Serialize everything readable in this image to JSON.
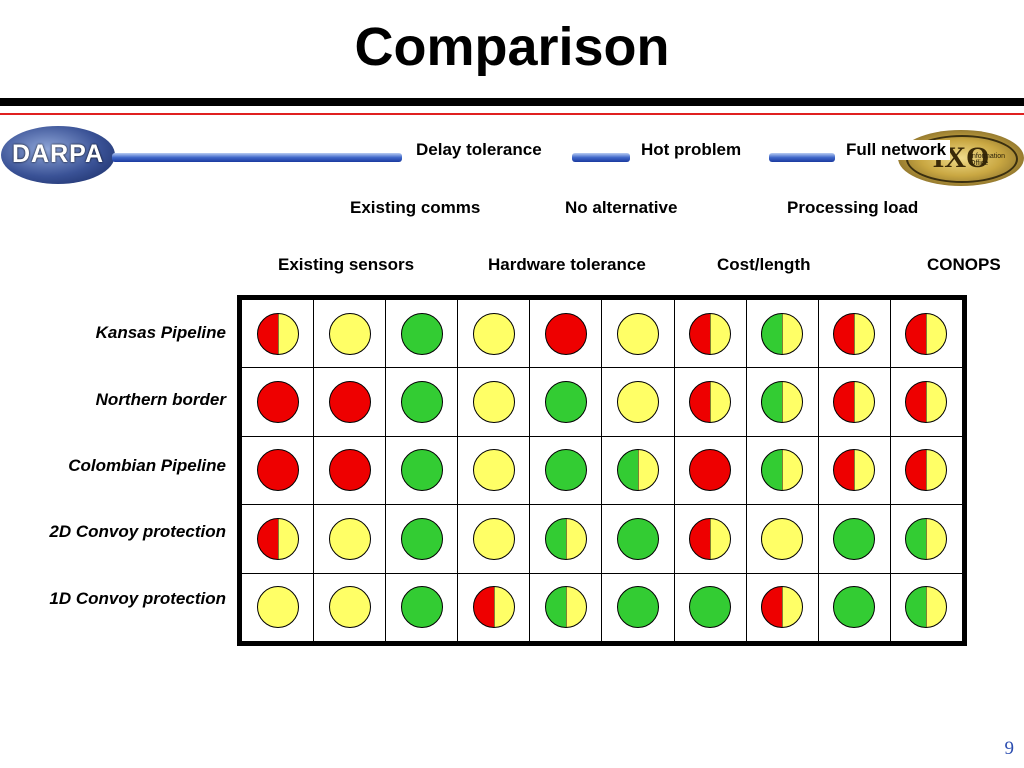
{
  "title": "Comparison",
  "logos": {
    "left_text": "DARPA",
    "right_mark": "IXO",
    "right_small_text": "Information Office"
  },
  "columns": [
    "Existing sensors",
    "Existing comms",
    "Delay tolerance",
    "Hardware tolerance",
    "No alternative",
    "Hot problem",
    "Cost/length",
    "Processing load",
    "Full network",
    "CONOPS"
  ],
  "rows": [
    {
      "label": "Kansas Pipeline",
      "cells": [
        "red|yellow",
        "yellow",
        "green",
        "yellow",
        "red",
        "yellow",
        "red|yellow",
        "green|yellow",
        "red|yellow",
        "red|yellow"
      ]
    },
    {
      "label": "Northern border",
      "cells": [
        "red",
        "red",
        "green",
        "yellow",
        "green",
        "yellow",
        "red|yellow",
        "green|yellow",
        "red|yellow",
        "red|yellow"
      ]
    },
    {
      "label": "Colombian Pipeline",
      "cells": [
        "red",
        "red",
        "green",
        "yellow",
        "green",
        "green|yellow",
        "red",
        "green|yellow",
        "red|yellow",
        "red|yellow"
      ]
    },
    {
      "label": "2D Convoy protection",
      "cells": [
        "red|yellow",
        "yellow",
        "green",
        "yellow",
        "green|yellow",
        "green",
        "red|yellow",
        "yellow",
        "green",
        "green|yellow"
      ]
    },
    {
      "label": "1D Convoy protection",
      "cells": [
        "yellow",
        "yellow",
        "green",
        "red|yellow",
        "green|yellow",
        "green",
        "green",
        "red|yellow",
        "green",
        "green|yellow"
      ]
    }
  ],
  "colors": {
    "red": "#ee0000",
    "yellow": "#ffff66",
    "green": "#33cc33"
  },
  "page_number": "9"
}
